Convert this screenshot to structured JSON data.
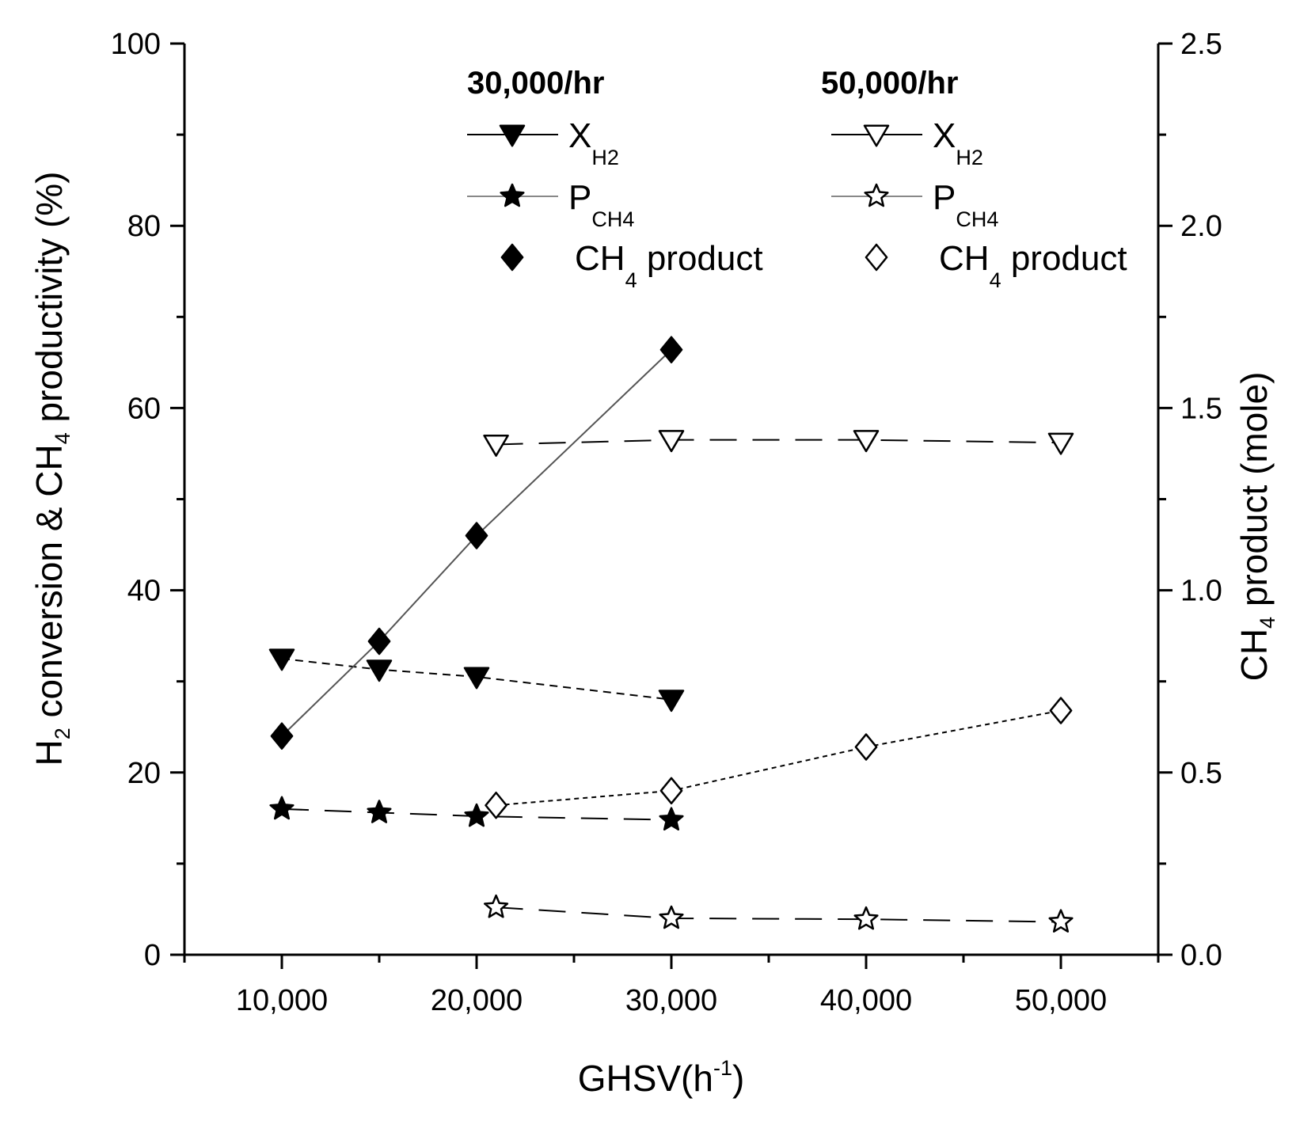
{
  "chart_data": {
    "type": "line",
    "xlabel": {
      "main": "GHSV(h",
      "sup": "-1",
      "close": ")"
    },
    "ylabel_left": {
      "a": "H",
      "a_sub": "2",
      "b": " conversion & CH",
      "b_sub": "4",
      "c": " productivity (%)"
    },
    "ylabel_right": {
      "a": "CH",
      "a_sub": "4",
      "b": " product (mole)"
    },
    "x_range": [
      5000,
      55000
    ],
    "x_ticks": [
      10000,
      20000,
      30000,
      40000,
      50000
    ],
    "x_tick_labels": [
      "10,000",
      "20,000",
      "30,000",
      "40,000",
      "50,000"
    ],
    "y_left_range": [
      0,
      100
    ],
    "y_left_ticks": [
      0,
      20,
      40,
      60,
      80,
      100
    ],
    "y_left_tick_labels": [
      "0",
      "20",
      "40",
      "60",
      "80",
      "100"
    ],
    "y_right_range": [
      0,
      2.5
    ],
    "y_right_ticks": [
      0,
      0.5,
      1.0,
      1.5,
      2.0,
      2.5
    ],
    "y_right_tick_labels": [
      "0.0",
      "0.5",
      "1.0",
      "1.5",
      "2.0",
      "2.5"
    ],
    "legend": {
      "group1_title": "30,000/hr",
      "group2_title": "50,000/hr",
      "entries": [
        {
          "series": "xh2_30k",
          "label": "X",
          "sub": "H2"
        },
        {
          "series": "pch4_30k",
          "label": "P",
          "sub": "CH4"
        },
        {
          "series": "ch4prod_30k",
          "label": "CH",
          "sub": "4",
          "suffix": " product"
        },
        {
          "series": "xh2_50k",
          "label": "X",
          "sub": "H2"
        },
        {
          "series": "pch4_50k",
          "label": "P",
          "sub": "CH4"
        },
        {
          "series": "ch4prod_50k",
          "label": "CH",
          "sub": "4",
          "suffix": " product"
        }
      ]
    },
    "series": [
      {
        "id": "xh2_30k",
        "name": "30,000/hr X_H2",
        "axis": "left",
        "marker": "triangle-down",
        "filled": true,
        "line": "dashed",
        "x": [
          10000,
          15000,
          20000,
          30000
        ],
        "y": [
          32.5,
          31.3,
          30.5,
          28.0
        ]
      },
      {
        "id": "pch4_30k",
        "name": "30,000/hr P_CH4",
        "axis": "left",
        "marker": "star",
        "filled": true,
        "line": "longdash",
        "x": [
          10000,
          15000,
          20000,
          30000
        ],
        "y": [
          16.0,
          15.6,
          15.2,
          14.8
        ]
      },
      {
        "id": "ch4prod_30k",
        "name": "30,000/hr CH4 product",
        "axis": "right",
        "marker": "diamond",
        "filled": true,
        "line": "solid",
        "x": [
          10000,
          15000,
          20000,
          30000
        ],
        "y": [
          0.6,
          0.86,
          1.15,
          1.66
        ]
      },
      {
        "id": "xh2_50k",
        "name": "50,000/hr X_H2",
        "axis": "left",
        "marker": "triangle-down",
        "filled": false,
        "line": "longdash",
        "x": [
          21000,
          30000,
          40000,
          50000
        ],
        "y": [
          56.0,
          56.5,
          56.5,
          56.2
        ]
      },
      {
        "id": "pch4_50k",
        "name": "50,000/hr P_CH4",
        "axis": "left",
        "marker": "star",
        "filled": false,
        "line": "longdash",
        "x": [
          21000,
          30000,
          40000,
          50000
        ],
        "y": [
          5.2,
          4.0,
          3.9,
          3.6
        ]
      },
      {
        "id": "ch4prod_50k",
        "name": "50,000/hr CH4 product",
        "axis": "right",
        "marker": "diamond",
        "filled": false,
        "line": "dashdot",
        "x": [
          21000,
          30000,
          40000,
          50000
        ],
        "y": [
          0.41,
          0.45,
          0.57,
          0.67
        ]
      }
    ]
  }
}
